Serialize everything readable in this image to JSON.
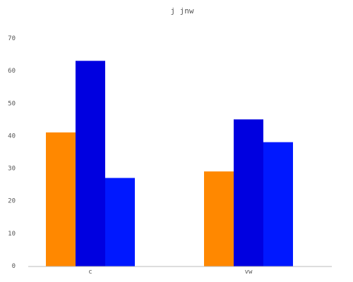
{
  "chart_data": {
    "type": "bar",
    "title": "j jnw",
    "xlabel": "",
    "ylabel": "",
    "categories": [
      "c",
      "vw"
    ],
    "series": [
      {
        "values": [
          41,
          29
        ],
        "color": "#ff8800"
      },
      {
        "values": [
          63,
          45
        ],
        "color": "#0000e0"
      },
      {
        "values": [
          27,
          38
        ],
        "color": "#0018ff"
      }
    ],
    "ylim": [
      0,
      70
    ],
    "yticks": [
      "0",
      "10",
      "20",
      "30",
      "40",
      "50",
      "60",
      "70"
    ],
    "grid": false,
    "legend": "none"
  }
}
